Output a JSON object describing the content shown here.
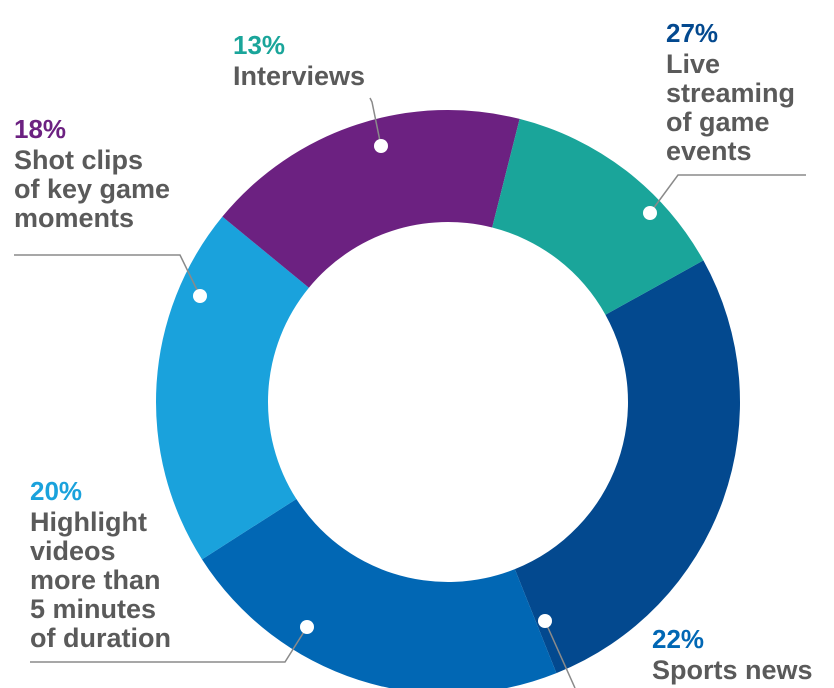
{
  "chart_data": {
    "type": "pie",
    "donut": true,
    "slices": [
      {
        "label": "Live\nstreaming\nof game\nevents",
        "percent_label": "27%",
        "value": 27,
        "color": "#03498f"
      },
      {
        "label": "Sports news",
        "percent_label": "22%",
        "value": 22,
        "color": "#0167b4"
      },
      {
        "label": "Highlight\nvideos\nmore than\n5 minutes\nof duration",
        "percent_label": "20%",
        "value": 20,
        "color": "#1aa2dc"
      },
      {
        "label": "Shot clips\nof key game\nmoments",
        "percent_label": "18%",
        "value": 18,
        "color": "#6c2181"
      },
      {
        "label": "Interviews",
        "percent_label": "13%",
        "value": 13,
        "color": "#1aa59a"
      }
    ]
  }
}
